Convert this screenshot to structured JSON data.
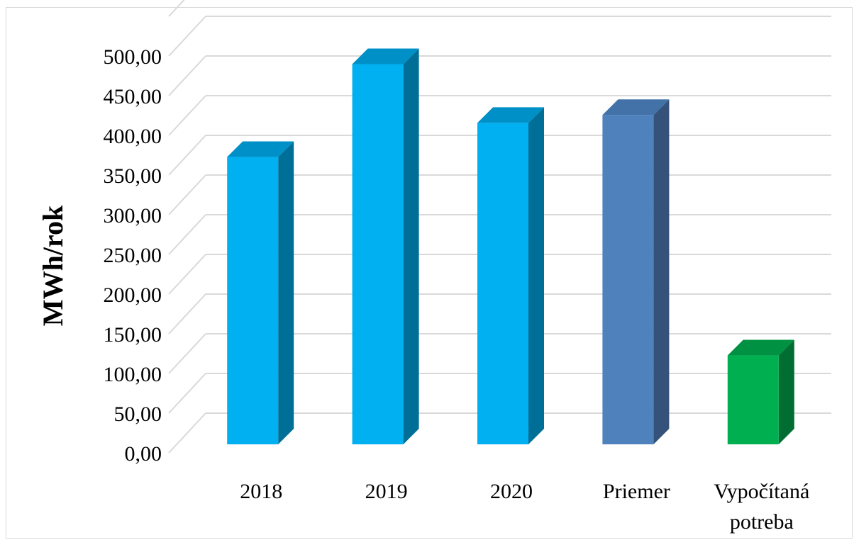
{
  "chart_data": {
    "type": "bar",
    "style": "3d-column",
    "categories": [
      "2018",
      "2019",
      "2020",
      "Priemer",
      "Vypočítaná potreba"
    ],
    "category_lines": [
      [
        "2018"
      ],
      [
        "2019"
      ],
      [
        "2020"
      ],
      [
        "Priemer"
      ],
      [
        "Vypočítaná",
        "potreba"
      ]
    ],
    "values": [
      362,
      479,
      405,
      415,
      112
    ],
    "bar_colors": [
      {
        "front": "#00b0f0",
        "side": "#006f98",
        "top": "#0090c8"
      },
      {
        "front": "#00b0f0",
        "side": "#006f98",
        "top": "#0090c8"
      },
      {
        "front": "#00b0f0",
        "side": "#006f98",
        "top": "#0090c8"
      },
      {
        "front": "#4f81bd",
        "side": "#34527a",
        "top": "#4272a8"
      },
      {
        "front": "#00b050",
        "side": "#006e32",
        "top": "#009242"
      }
    ],
    "ylabel": "MWh/rok",
    "xlabel": "",
    "title": "",
    "ylim": [
      0,
      500
    ],
    "yticks": [
      "0,00",
      "50,00",
      "100,00",
      "150,00",
      "200,00",
      "250,00",
      "300,00",
      "350,00",
      "400,00",
      "450,00",
      "500,00"
    ],
    "grid": true,
    "legend": "none",
    "gridline_color": "#d9d9d9"
  }
}
